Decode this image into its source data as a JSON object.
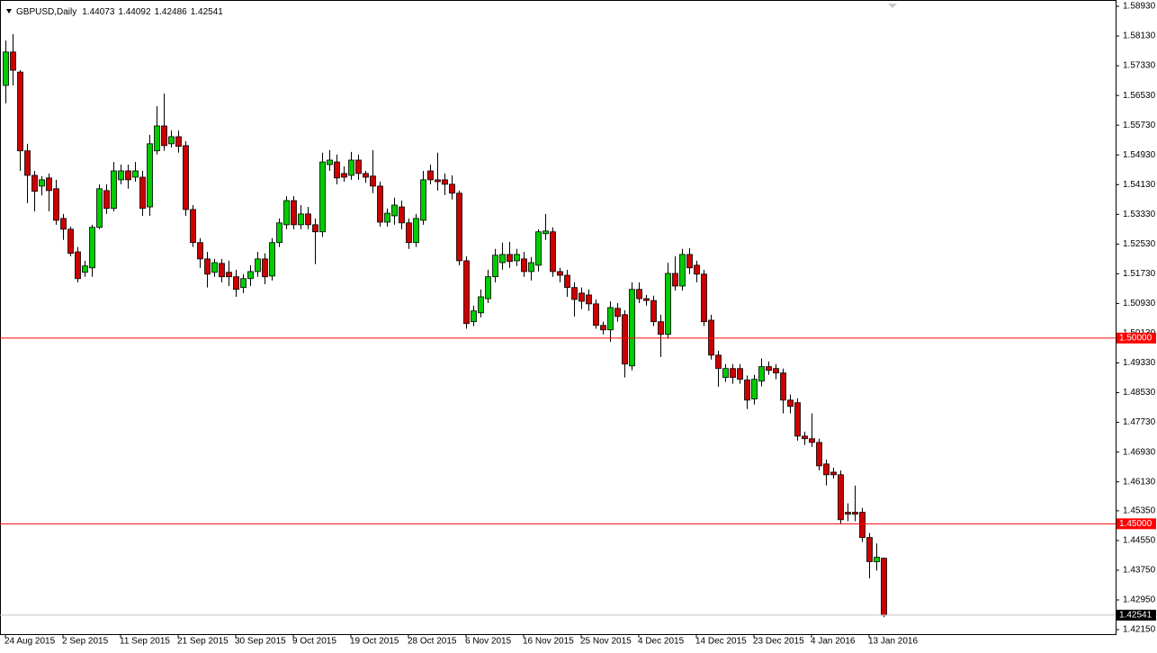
{
  "chart_data": {
    "type": "candlestick",
    "title": "GBPUSD,Daily",
    "up_color": "#00cc00",
    "down_color": "#cc0000",
    "ylim": [
      1.4203,
      1.591
    ],
    "yticks": [
      {
        "value": 1.5893,
        "label": "1.58930"
      },
      {
        "value": 1.5813,
        "label": "1.58130"
      },
      {
        "value": 1.5733,
        "label": "1.57330"
      },
      {
        "value": 1.5653,
        "label": "1.56530"
      },
      {
        "value": 1.5573,
        "label": "1.55730"
      },
      {
        "value": 1.5493,
        "label": "1.54930"
      },
      {
        "value": 1.5413,
        "label": "1.54130"
      },
      {
        "value": 1.5333,
        "label": "1.53330"
      },
      {
        "value": 1.5253,
        "label": "1.52530"
      },
      {
        "value": 1.5173,
        "label": "1.51730"
      },
      {
        "value": 1.5093,
        "label": "1.50930"
      },
      {
        "value": 1.5013,
        "label": "1.50130"
      },
      {
        "value": 1.4933,
        "label": "1.49330"
      },
      {
        "value": 1.4853,
        "label": "1.48530"
      },
      {
        "value": 1.4773,
        "label": "1.47730"
      },
      {
        "value": 1.4693,
        "label": "1.46930"
      },
      {
        "value": 1.4613,
        "label": "1.46130"
      },
      {
        "value": 1.4535,
        "label": "1.45350"
      },
      {
        "value": 1.4455,
        "label": "1.44550"
      },
      {
        "value": 1.4375,
        "label": "1.43750"
      },
      {
        "value": 1.4295,
        "label": "1.42950"
      },
      {
        "value": 1.4215,
        "label": "1.42150"
      }
    ],
    "hlines": [
      {
        "value": 1.5,
        "label": "1.50000",
        "color": "#ff0000"
      },
      {
        "value": 1.45,
        "label": "1.45000",
        "color": "#ff0000"
      }
    ],
    "categories": [
      "24 Aug 2015",
      null,
      null,
      null,
      null,
      null,
      null,
      null,
      "2 Sep 2015",
      null,
      null,
      null,
      null,
      null,
      null,
      null,
      "11 Sep 2015",
      null,
      null,
      null,
      null,
      null,
      null,
      null,
      "21 Sep 2015",
      null,
      null,
      null,
      null,
      null,
      null,
      null,
      "30 Sep 2015",
      null,
      null,
      null,
      null,
      null,
      null,
      null,
      "9 Oct 2015",
      null,
      null,
      null,
      null,
      null,
      null,
      null,
      "19 Oct 2015",
      null,
      null,
      null,
      null,
      null,
      null,
      null,
      "28 Oct 2015",
      null,
      null,
      null,
      null,
      null,
      null,
      null,
      "6 Nov 2015",
      null,
      null,
      null,
      null,
      null,
      null,
      null,
      "16 Nov 2015",
      null,
      null,
      null,
      null,
      null,
      null,
      null,
      "25 Nov 2015",
      null,
      null,
      null,
      null,
      null,
      null,
      null,
      "4 Dec 2015",
      null,
      null,
      null,
      null,
      null,
      null,
      null,
      "14 Dec 2015",
      null,
      null,
      null,
      null,
      null,
      null,
      null,
      "23 Dec 2015",
      null,
      null,
      null,
      null,
      null,
      null,
      null,
      "4 Jan 2016",
      null,
      null,
      null,
      null,
      null,
      null,
      null,
      "13 Jan 2016",
      null,
      null
    ],
    "open": [
      1.568,
      1.577,
      1.5716,
      1.5504,
      1.5438,
      1.5409,
      1.5431,
      1.5402,
      1.5322,
      1.5293,
      1.5232,
      1.5177,
      1.5189,
      1.5298,
      1.5397,
      1.5349,
      1.5426,
      1.545,
      1.5433,
      1.5433,
      1.5353,
      1.5504,
      1.5571,
      1.5523,
      1.5542,
      1.5518,
      1.5346,
      1.5257,
      1.5213,
      1.5177,
      1.5201,
      1.5177,
      1.5165,
      1.5136,
      1.516,
      1.5179,
      1.5213,
      1.5167,
      1.5257,
      1.5305,
      1.537,
      1.5305,
      1.5334,
      1.5305,
      1.5286,
      1.5467,
      1.5474,
      1.5443,
      1.5438,
      1.5479,
      1.5443,
      1.5436,
      1.5409,
      1.5312,
      1.5329,
      1.5353,
      1.531,
      1.5257,
      1.5317,
      1.545,
      1.5426,
      1.5426,
      1.5414,
      1.539,
      1.5208,
      1.5044,
      1.5068,
      1.5106,
      1.5165,
      1.5203,
      1.5225,
      1.5208,
      1.5213,
      1.5179,
      1.5196,
      1.5281,
      1.5286,
      1.5179,
      1.5169,
      1.5136,
      1.5121,
      1.5116,
      1.5092,
      1.5034,
      1.5022,
      1.508,
      1.5063,
      1.4925,
      1.5131,
      1.5106,
      1.5101,
      1.5044,
      1.501,
      1.5174,
      1.514,
      1.5225,
      1.5196,
      1.5172,
      1.5048,
      1.4954,
      1.4894,
      1.4918,
      1.4918,
      1.4887,
      1.4836,
      1.4884,
      1.4923,
      1.4918,
      1.4906,
      1.4833,
      1.4826,
      1.4736,
      1.4729,
      1.4719,
      1.4661,
      1.4639,
      1.4632,
      1.4531,
      1.4531,
      1.4531,
      1.4463,
      1.4398,
      1.44073
    ],
    "high": [
      1.5801,
      1.5818,
      1.5721,
      1.5523,
      1.545,
      1.5436,
      1.5443,
      1.5426,
      1.5334,
      1.53,
      1.5245,
      1.5208,
      1.5305,
      1.5414,
      1.5414,
      1.5474,
      1.5467,
      1.5467,
      1.5474,
      1.545,
      1.5547,
      1.5624,
      1.5658,
      1.5559,
      1.5559,
      1.553,
      1.5358,
      1.5269,
      1.5232,
      1.5213,
      1.5213,
      1.5208,
      1.5184,
      1.5172,
      1.5196,
      1.5232,
      1.5228,
      1.5269,
      1.5322,
      1.5382,
      1.5382,
      1.5358,
      1.5353,
      1.5322,
      1.5499,
      1.5506,
      1.5494,
      1.5462,
      1.5501,
      1.5494,
      1.545,
      1.5506,
      1.5421,
      1.5349,
      1.5378,
      1.537,
      1.5322,
      1.5334,
      1.545,
      1.5467,
      1.5499,
      1.5443,
      1.5438,
      1.5397,
      1.522,
      1.5087,
      1.5131,
      1.5184,
      1.524,
      1.5257,
      1.5259,
      1.524,
      1.5232,
      1.5218,
      1.5293,
      1.5334,
      1.5298,
      1.5189,
      1.5184,
      1.515,
      1.5136,
      1.5131,
      1.5104,
      1.5044,
      1.5099,
      1.5094,
      1.5075,
      1.515,
      1.515,
      1.5116,
      1.5114,
      1.5063,
      1.5203,
      1.522,
      1.524,
      1.5242,
      1.5208,
      1.5184,
      1.5063,
      1.4966,
      1.493,
      1.493,
      1.493,
      1.4899,
      1.4901,
      1.4945,
      1.4937,
      1.493,
      1.4918,
      1.4848,
      1.4838,
      1.4748,
      1.4797,
      1.4729,
      1.4673,
      1.4651,
      1.4644,
      1.4555,
      1.4603,
      1.4543,
      1.4475,
      1.4447,
      1.44092
    ],
    "low": [
      1.5632,
      1.568,
      1.545,
      1.5363,
      1.5341,
      1.5384,
      1.5341,
      1.5305,
      1.5264,
      1.522,
      1.515,
      1.5165,
      1.5165,
      1.5293,
      1.5334,
      1.5341,
      1.5414,
      1.5402,
      1.5421,
      1.5329,
      1.5329,
      1.5494,
      1.5504,
      1.5513,
      1.5499,
      1.5329,
      1.5245,
      1.5189,
      1.5136,
      1.5165,
      1.515,
      1.514,
      1.5111,
      1.5121,
      1.514,
      1.5165,
      1.5145,
      1.5155,
      1.5245,
      1.5293,
      1.5293,
      1.5293,
      1.5293,
      1.5199,
      1.5272,
      1.545,
      1.5414,
      1.5421,
      1.5426,
      1.5426,
      1.5418,
      1.539,
      1.53,
      1.53,
      1.5305,
      1.5293,
      1.524,
      1.5245,
      1.5305,
      1.5414,
      1.5397,
      1.5385,
      1.5373,
      1.5196,
      1.5025,
      1.5032,
      1.5056,
      1.5094,
      1.515,
      1.5184,
      1.5189,
      1.5194,
      1.5165,
      1.5155,
      1.5179,
      1.5264,
      1.5165,
      1.515,
      1.5111,
      1.5058,
      1.5078,
      1.5073,
      1.5025,
      1.501,
      1.499,
      1.5044,
      1.4894,
      1.4913,
      1.5094,
      1.5087,
      1.5032,
      1.4949,
      1.4998,
      1.5128,
      1.5128,
      1.5172,
      1.515,
      1.5032,
      1.4942,
      1.4869,
      1.4882,
      1.4877,
      1.4877,
      1.4809,
      1.4821,
      1.487,
      1.4901,
      1.4889,
      1.4797,
      1.4797,
      1.4724,
      1.4712,
      1.4707,
      1.4644,
      1.4603,
      1.4622,
      1.4499,
      1.4507,
      1.4507,
      1.4451,
      1.4353,
      1.4374,
      1.42486
    ],
    "close": [
      1.577,
      1.5721,
      1.5504,
      1.5438,
      1.5395,
      1.5426,
      1.5397,
      1.5317,
      1.5293,
      1.5228,
      1.516,
      1.5194,
      1.5298,
      1.5402,
      1.5349,
      1.545,
      1.545,
      1.5426,
      1.545,
      1.5349,
      1.5523,
      1.5571,
      1.5518,
      1.5542,
      1.5516,
      1.5346,
      1.5257,
      1.5213,
      1.5172,
      1.5203,
      1.5165,
      1.5165,
      1.5131,
      1.516,
      1.5179,
      1.5213,
      1.5165,
      1.5257,
      1.531,
      1.537,
      1.5305,
      1.5334,
      1.5305,
      1.5286,
      1.5474,
      1.5479,
      1.5431,
      1.5433,
      1.5479,
      1.5443,
      1.5433,
      1.5409,
      1.5312,
      1.5336,
      1.5358,
      1.531,
      1.5257,
      1.5322,
      1.5426,
      1.5426,
      1.5421,
      1.5414,
      1.539,
      1.5208,
      1.5039,
      1.5073,
      1.5111,
      1.5165,
      1.5223,
      1.5225,
      1.5206,
      1.5225,
      1.5179,
      1.5203,
      1.5286,
      1.5288,
      1.5179,
      1.5169,
      1.5136,
      1.5104,
      1.5099,
      1.5092,
      1.5034,
      1.5022,
      1.5082,
      1.5058,
      1.493,
      1.5131,
      1.5106,
      1.5101,
      1.5044,
      1.501,
      1.5174,
      1.514,
      1.5225,
      1.5189,
      1.5172,
      1.5044,
      1.4954,
      1.4918,
      1.4918,
      1.4894,
      1.4889,
      1.4833,
      1.4889,
      1.4923,
      1.4913,
      1.4906,
      1.4833,
      1.4816,
      1.4736,
      1.4729,
      1.4719,
      1.4656,
      1.4632,
      1.4632,
      1.4511,
      1.4526,
      1.4526,
      1.4463,
      1.4398,
      1.441,
      1.42541
    ]
  }
}
